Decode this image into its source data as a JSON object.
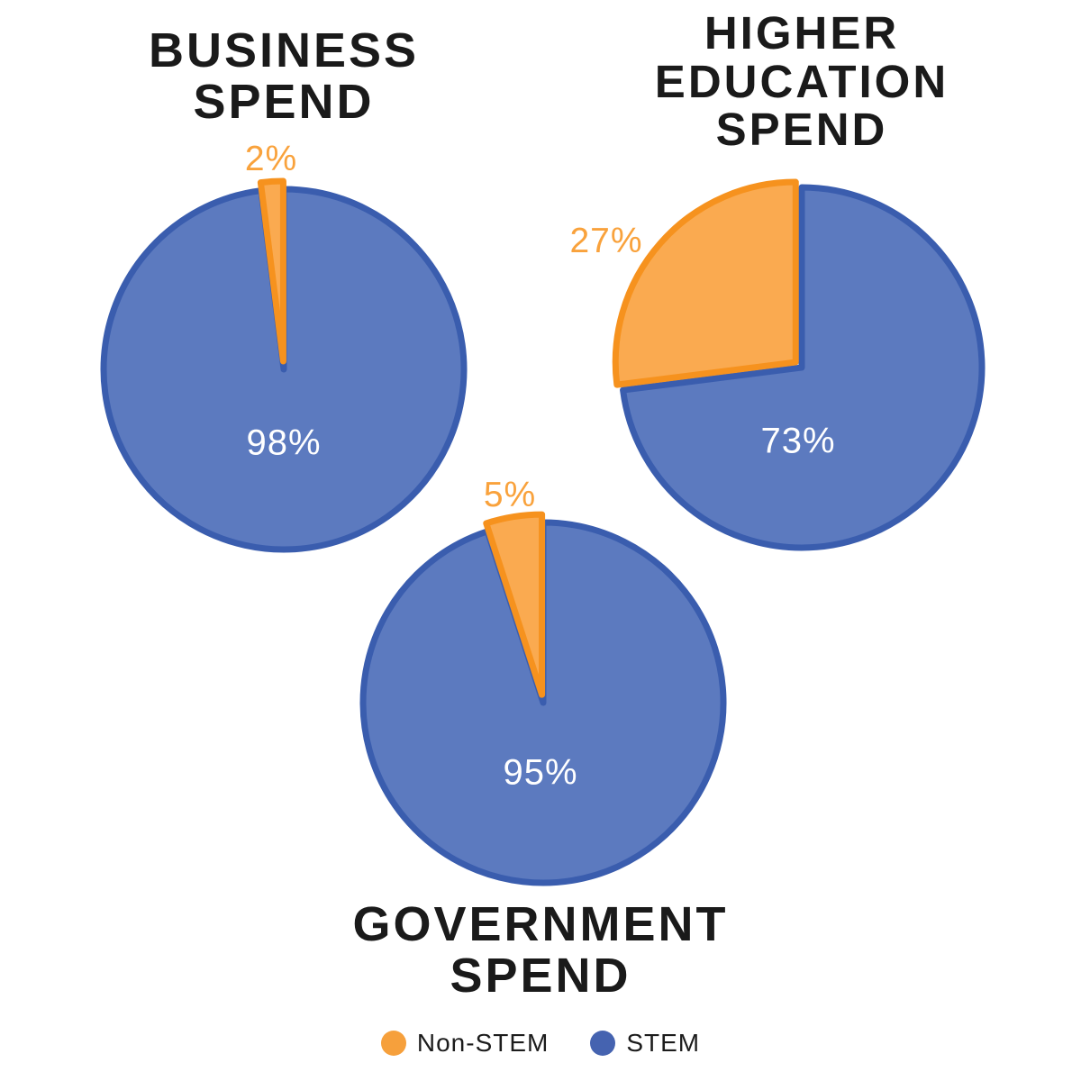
{
  "chart_data": [
    {
      "id": "business",
      "type": "pie",
      "title": "BUSINESS SPEND",
      "title_lines": [
        "BUSINESS",
        "SPEND"
      ],
      "categories": [
        "STEM",
        "Non-STEM"
      ],
      "values": [
        98,
        2
      ],
      "slice_labels": [
        "98%",
        "2%"
      ],
      "start_angle_deg": 0,
      "direction": "clockwise",
      "exploded_slice": "Non-STEM",
      "legend_position": "bottom-shared"
    },
    {
      "id": "higher-education",
      "type": "pie",
      "title": "HIGHER EDUCATION SPEND",
      "title_lines": [
        "HIGHER",
        "EDUCATION",
        "SPEND"
      ],
      "categories": [
        "STEM",
        "Non-STEM"
      ],
      "values": [
        73,
        27
      ],
      "slice_labels": [
        "73%",
        "27%"
      ],
      "start_angle_deg": 0,
      "direction": "clockwise",
      "exploded_slice": "Non-STEM",
      "legend_position": "bottom-shared"
    },
    {
      "id": "government",
      "type": "pie",
      "title": "GOVERNMENT SPEND",
      "title_lines": [
        "GOVERNMENT",
        "SPEND"
      ],
      "categories": [
        "STEM",
        "Non-STEM"
      ],
      "values": [
        95,
        5
      ],
      "slice_labels": [
        "95%",
        "5%"
      ],
      "start_angle_deg": 0,
      "direction": "clockwise",
      "exploded_slice": "Non-STEM",
      "legend_position": "bottom-shared"
    }
  ],
  "legend": {
    "items": [
      {
        "label": "Non-STEM",
        "color": "#f6a03c"
      },
      {
        "label": "STEM",
        "color": "#4563b0"
      }
    ]
  },
  "colors": {
    "stem_fill": "#5c7abf",
    "stem_stroke": "#3a5dae",
    "nonstem_fill": "#faaa50",
    "nonstem_stroke": "#f6921e",
    "value_label_inside": "#ffffff",
    "value_label_outside": "#f9a23c",
    "title_text": "#1a1a1a",
    "background": "#ffffff"
  }
}
